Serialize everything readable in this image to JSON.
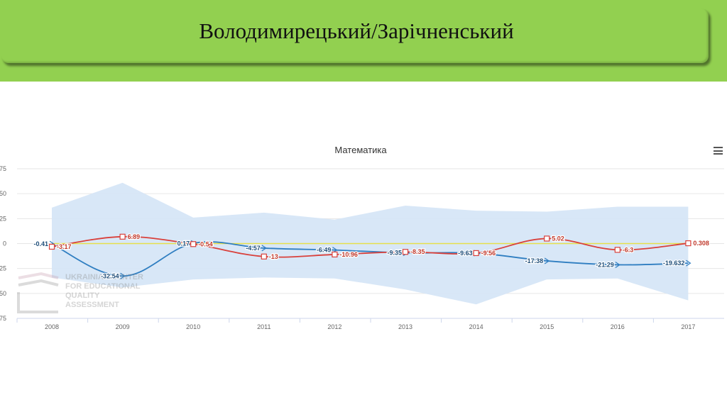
{
  "slide": {
    "title": "Володимирецький/Зарічненський"
  },
  "watermark": {
    "line1": "UKRAINIAN CENTER",
    "line2": "FOR EDUCATIONAL",
    "line3": "QUALITY",
    "line4": "ASSESSMENT"
  },
  "colors": {
    "header": "#92d050",
    "district_a": "#2f7ec1",
    "district_b": "#d9403b",
    "zero_line": "#e6e04a",
    "band": "#d6e6f7",
    "axis_text": "#666666"
  },
  "icons": {
    "menu": "hamburger-icon"
  },
  "chart_data": {
    "type": "line",
    "title": "Математика",
    "categories": [
      "2008",
      "2009",
      "2010",
      "2011",
      "2012",
      "2013",
      "2014",
      "2015",
      "2016",
      "2017"
    ],
    "y_ticks": [
      "75",
      "50",
      "25",
      "0",
      "25",
      "50",
      "75"
    ],
    "ylim": [
      -75,
      75
    ],
    "grid": true,
    "legend": "none",
    "series": [
      {
        "values": [
          -0.41,
          -32.54,
          0.17,
          -4.57,
          -6.49,
          -9.35,
          -9.63,
          -17.38,
          -21.29,
          -19.632
        ],
        "labels": [
          "-0.41",
          "-32.54",
          "0.17",
          "-4.57",
          "-6.49",
          "-9.35",
          "-9.63",
          "-17.38",
          "-21.29",
          "-19.632"
        ],
        "marker": "triangle-right",
        "color": "#2f7ec1"
      },
      {
        "values": [
          -3.17,
          6.89,
          -0.54,
          -13,
          -10.96,
          -8.35,
          -9.56,
          5.02,
          -6.3,
          0.308
        ],
        "labels": [
          "-3.17",
          "6.89",
          "-0.54",
          "-13",
          "-10.96",
          "-8.35",
          "-9.56",
          "5.02",
          "-6.3",
          "0.308"
        ],
        "marker": "square",
        "color": "#d9403b"
      }
    ],
    "band": {
      "upper": [
        36,
        61,
        26,
        31,
        24,
        38,
        33,
        32,
        37,
        37
      ],
      "lower": [
        -34,
        -44,
        -36,
        -34,
        -35,
        -46,
        -61,
        -36,
        -35,
        -57
      ]
    },
    "reference_line": 0
  }
}
